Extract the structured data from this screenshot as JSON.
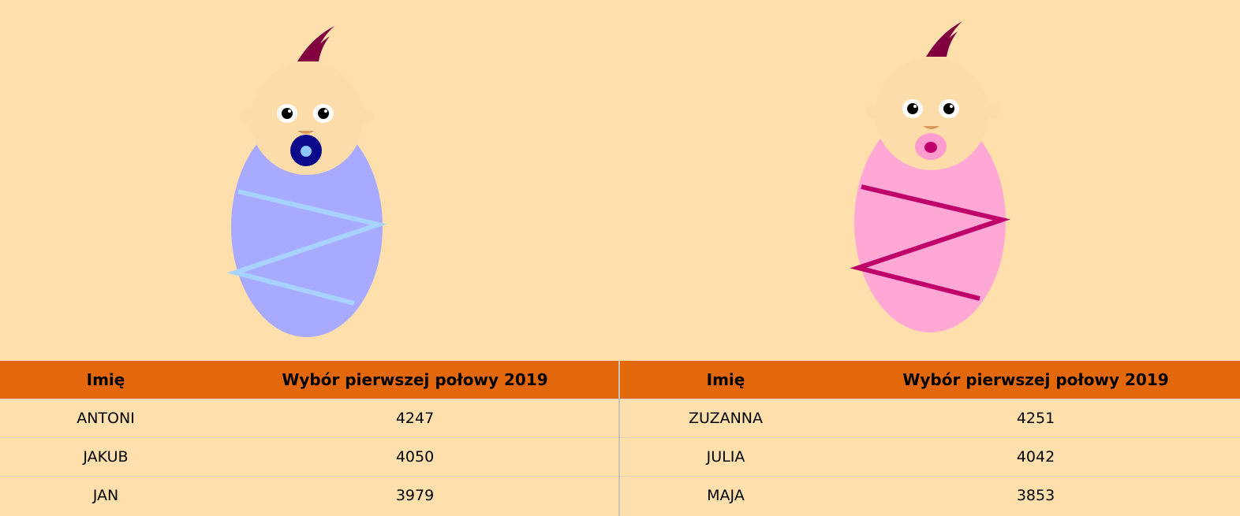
{
  "tables": {
    "boys": {
      "headers": {
        "name": "Imię",
        "count": "Wybór pierwszej połowy 2019"
      },
      "rows": [
        {
          "name": "ANTONI",
          "count": "4247"
        },
        {
          "name": "JAKUB",
          "count": "4050"
        },
        {
          "name": "JAN",
          "count": "3979"
        }
      ]
    },
    "girls": {
      "headers": {
        "name": "Imię",
        "count": "Wybór pierwszej połowy 2019"
      },
      "rows": [
        {
          "name": "ZUZANNA",
          "count": "4251"
        },
        {
          "name": "JULIA",
          "count": "4042"
        },
        {
          "name": "MAJA",
          "count": "3853"
        }
      ]
    }
  },
  "colors": {
    "background": "#ffe0ad",
    "header": "#e3680b",
    "boy_blanket": "#a8aaff",
    "boy_stripe": "#a9d3ff",
    "girl_blanket": "#ffa8d6",
    "girl_stripe": "#c0006a",
    "skin": "#fcdca8",
    "hair": "#800040"
  }
}
